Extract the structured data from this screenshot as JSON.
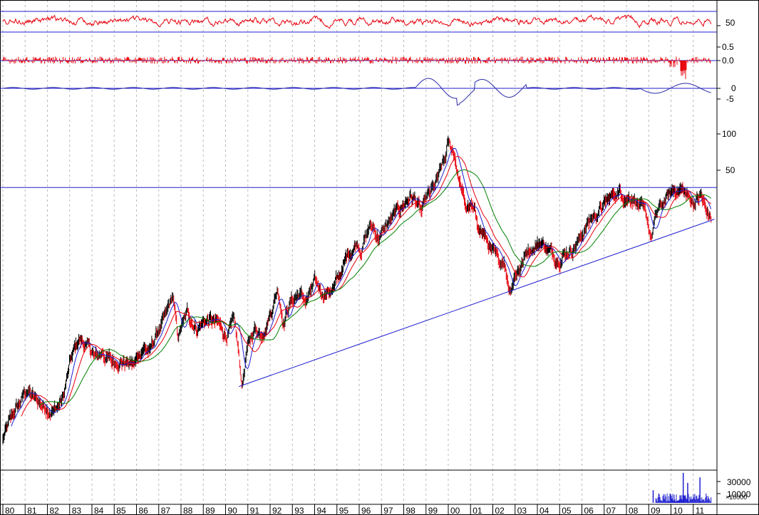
{
  "chart_data": {
    "type": "line",
    "title": "",
    "scale": "log",
    "colors": {
      "rsi": "#e8000b",
      "momentum": "#e8000b",
      "oscillator": "#2a2aa8",
      "guides": "#1f1fd0",
      "price_up": "#000000",
      "price_down": "#e8000b",
      "ma_short": "#1f1fd0",
      "ma_mid": "#e8000b",
      "ma_long": "#008000",
      "volume": "#1f1fd0",
      "grid": "#b8b8b8"
    },
    "panels": [
      {
        "name": "rsi",
        "ticks": [
          "50"
        ]
      },
      {
        "name": "momentum",
        "ticks": [
          "0.5",
          "0.0"
        ]
      },
      {
        "name": "oscillator",
        "ticks": [
          "0",
          "-5"
        ]
      },
      {
        "name": "price",
        "ticks": [
          "100",
          "50"
        ]
      },
      {
        "name": "volume",
        "ticks": [
          "30000",
          "10000"
        ],
        "unit": "×10000"
      }
    ],
    "x_labels": [
      "80",
      "81",
      "82",
      "83",
      "84",
      "85",
      "86",
      "87",
      "88",
      "89",
      "90",
      "91",
      "92",
      "93",
      "94",
      "95",
      "96",
      "97",
      "98",
      "99",
      "00",
      "01",
      "02",
      "03",
      "04",
      "05",
      "06",
      "07",
      "08",
      "09",
      "10",
      "11"
    ],
    "x_year_start": 1980,
    "price_anchors": [
      [
        1980.0,
        8.5
      ],
      [
        1980.6,
        11
      ],
      [
        1981.1,
        13
      ],
      [
        1981.4,
        12
      ],
      [
        1981.7,
        11.5
      ],
      [
        1982.3,
        11
      ],
      [
        1982.7,
        12
      ],
      [
        1983.0,
        16
      ],
      [
        1983.4,
        20
      ],
      [
        1983.8,
        19
      ],
      [
        1984.2,
        17
      ],
      [
        1984.5,
        18
      ],
      [
        1984.9,
        16.5
      ],
      [
        1985.3,
        17
      ],
      [
        1985.6,
        16.5
      ],
      [
        1985.9,
        16
      ],
      [
        1986.3,
        19
      ],
      [
        1986.6,
        18
      ],
      [
        1986.9,
        21
      ],
      [
        1987.3,
        24
      ],
      [
        1987.65,
        29
      ],
      [
        1987.85,
        20
      ],
      [
        1988.0,
        22
      ],
      [
        1988.3,
        25
      ],
      [
        1988.7,
        22.5
      ],
      [
        1989.2,
        24
      ],
      [
        1989.6,
        23
      ],
      [
        1990.0,
        21
      ],
      [
        1990.4,
        23
      ],
      [
        1990.75,
        13.5
      ],
      [
        1990.95,
        18
      ],
      [
        1991.3,
        22
      ],
      [
        1991.6,
        21.5
      ],
      [
        1991.8,
        23
      ],
      [
        1992.1,
        27
      ],
      [
        1992.35,
        32
      ],
      [
        1992.6,
        24
      ],
      [
        1992.9,
        28
      ],
      [
        1993.3,
        30
      ],
      [
        1993.6,
        28
      ],
      [
        1994.0,
        32
      ],
      [
        1994.4,
        30
      ],
      [
        1994.9,
        32
      ],
      [
        1995.2,
        36
      ],
      [
        1995.5,
        42
      ],
      [
        1995.9,
        47
      ],
      [
        1996.1,
        45
      ],
      [
        1996.5,
        54
      ],
      [
        1996.9,
        49
      ],
      [
        1997.3,
        55
      ],
      [
        1997.7,
        60
      ],
      [
        1998.0,
        65
      ],
      [
        1998.3,
        70
      ],
      [
        1998.6,
        66
      ],
      [
        1998.8,
        60
      ],
      [
        1999.0,
        66
      ],
      [
        1999.3,
        72
      ],
      [
        1999.6,
        82
      ],
      [
        1999.9,
        96
      ],
      [
        2000.0,
        108
      ],
      [
        2000.3,
        98
      ],
      [
        2000.5,
        80
      ],
      [
        2000.8,
        62
      ],
      [
        2001.0,
        64
      ],
      [
        2001.3,
        55
      ],
      [
        2001.6,
        50
      ],
      [
        2001.9,
        44
      ],
      [
        2002.3,
        38
      ],
      [
        2002.5,
        41
      ],
      [
        2002.75,
        31
      ],
      [
        2003.0,
        36
      ],
      [
        2003.3,
        39
      ],
      [
        2003.6,
        44
      ],
      [
        2003.9,
        46
      ],
      [
        2004.2,
        47
      ],
      [
        2004.5,
        44
      ],
      [
        2004.8,
        41
      ],
      [
        2005.2,
        43
      ],
      [
        2005.6,
        45
      ],
      [
        2006.0,
        50
      ],
      [
        2006.4,
        57
      ],
      [
        2006.8,
        62
      ],
      [
        2007.2,
        67
      ],
      [
        2007.6,
        72
      ],
      [
        2007.9,
        71
      ],
      [
        2008.3,
        70
      ],
      [
        2008.6,
        65
      ],
      [
        2008.95,
        55
      ],
      [
        2009.1,
        48
      ],
      [
        2009.4,
        60
      ],
      [
        2009.8,
        68
      ],
      [
        2010.2,
        74
      ],
      [
        2010.45,
        75
      ],
      [
        2010.8,
        68
      ],
      [
        2011.0,
        66
      ],
      [
        2011.35,
        70
      ],
      [
        2011.6,
        60
      ],
      [
        2011.8,
        57
      ]
    ],
    "reference_lines": [
      {
        "type": "horizontal",
        "panel": "price",
        "value": 75
      },
      {
        "type": "trend",
        "panel": "price",
        "from": [
          1990.6,
          13.4
        ],
        "to": [
          2011.95,
          57
        ]
      }
    ],
    "volume_spikes": [
      [
        2010.55,
        33000
      ],
      [
        2010.75,
        22000
      ],
      [
        2011.3,
        28000
      ],
      [
        2009.2,
        14000
      ]
    ]
  }
}
